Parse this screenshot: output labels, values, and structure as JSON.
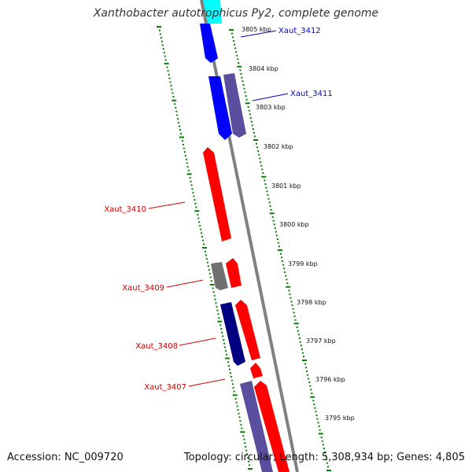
{
  "title": "Xanthobacter autotrophicus Py2, complete genome",
  "footer": {
    "accession": "Accession: NC_009720",
    "summary": "Topology: circular; Length: 5,308,934 bp; Genes: 4,805"
  },
  "colors": {
    "forward": "#ff0000",
    "reverse_blue": "#0000ff",
    "reverse_navy": "#000080",
    "reverse_slate": "#5a4f9e",
    "neutral_gray": "#707070",
    "cyan": "#00ffff",
    "backbone": "#808080",
    "ticks": "#008000",
    "label_red": "#cc0000",
    "label_blue": "#0000cc"
  },
  "scale_labels": [
    "3805 kbp",
    "3804 kbp",
    "3803 kbp",
    "3802 kbp",
    "3801 kbp",
    "3800 kbp",
    "3799 kbp",
    "3798 kbp",
    "3797 kbp",
    "3796 kbp",
    "3795 kbp"
  ],
  "genes": [
    {
      "name": "Xaut_3412",
      "strand": "reverse",
      "color": "reverse_blue"
    },
    {
      "name": "Xaut_3411",
      "strand": "reverse",
      "color": "reverse_slate"
    },
    {
      "name": "Xaut_3410",
      "strand": "forward",
      "color": "forward"
    },
    {
      "name": "Xaut_3409",
      "strand": "reverse",
      "color": "neutral_gray"
    },
    {
      "name": "Xaut_3408",
      "strand": "reverse",
      "color": "reverse_navy"
    },
    {
      "name": "Xaut_3407",
      "strand": "reverse",
      "color": "reverse_slate"
    }
  ]
}
